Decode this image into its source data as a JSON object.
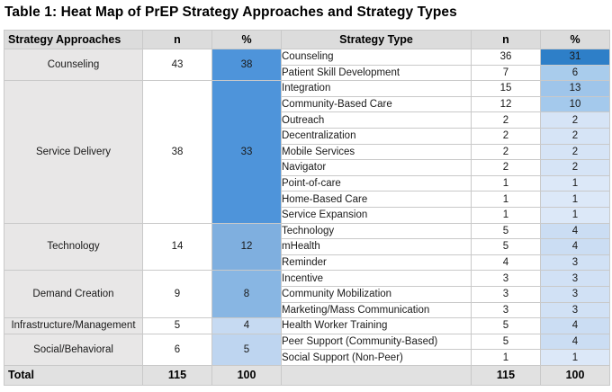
{
  "title": "Table 1: Heat Map of PrEP Strategy Approaches and Strategy Types",
  "chart_data": {
    "type": "heatmap",
    "subtype": "table",
    "columns": [
      "Strategy Approaches",
      "n",
      "%",
      "Strategy Type",
      "n",
      "%"
    ],
    "heat_scale_note": "blue intensity proportional to % value",
    "groups": [
      {
        "approach": "Counseling",
        "n": 43,
        "pct": 38,
        "pct_color": "#4e94da",
        "types": [
          {
            "label": "Counseling",
            "n": 36,
            "pct": 31,
            "pct_color": "#2e7fc8"
          },
          {
            "label": "Patient Skill Development",
            "n": 7,
            "pct": 6,
            "pct_color": "#a9ccec"
          }
        ]
      },
      {
        "approach": "Service Delivery",
        "n": 38,
        "pct": 33,
        "pct_color": "#4e94da",
        "types": [
          {
            "label": "Integration",
            "n": 15,
            "pct": 13,
            "pct_color": "#9fc5ea"
          },
          {
            "label": "Community-Based Care",
            "n": 12,
            "pct": 10,
            "pct_color": "#a4c9ec"
          },
          {
            "label": "Outreach",
            "n": 2,
            "pct": 2,
            "pct_color": "#d6e4f6"
          },
          {
            "label": "Decentralization",
            "n": 2,
            "pct": 2,
            "pct_color": "#d6e4f6"
          },
          {
            "label": "Mobile Services",
            "n": 2,
            "pct": 2,
            "pct_color": "#d6e4f6"
          },
          {
            "label": "Navigator",
            "n": 2,
            "pct": 2,
            "pct_color": "#d6e4f6"
          },
          {
            "label": "Point-of-care",
            "n": 1,
            "pct": 1,
            "pct_color": "#dce8f8"
          },
          {
            "label": "Home-Based Care",
            "n": 1,
            "pct": 1,
            "pct_color": "#dce8f8"
          },
          {
            "label": "Service Expansion",
            "n": 1,
            "pct": 1,
            "pct_color": "#dce8f8"
          }
        ]
      },
      {
        "approach": "Technology",
        "n": 14,
        "pct": 12,
        "pct_color": "#7fafdf",
        "types": [
          {
            "label": "Technology",
            "n": 5,
            "pct": 4,
            "pct_color": "#cbddf3"
          },
          {
            "label": "mHealth",
            "n": 5,
            "pct": 4,
            "pct_color": "#cbddf3"
          },
          {
            "label": "Reminder",
            "n": 4,
            "pct": 3,
            "pct_color": "#d1e1f5"
          }
        ]
      },
      {
        "approach": "Demand Creation",
        "n": 9,
        "pct": 8,
        "pct_color": "#88b6e3",
        "types": [
          {
            "label": "Incentive",
            "n": 3,
            "pct": 3,
            "pct_color": "#d1e1f5"
          },
          {
            "label": "Community Mobilization",
            "n": 3,
            "pct": 3,
            "pct_color": "#d1e1f5"
          },
          {
            "label": "Marketing/Mass Communication",
            "n": 3,
            "pct": 3,
            "pct_color": "#d1e1f5"
          }
        ]
      },
      {
        "approach": "Infrastructure/Management",
        "n": 5,
        "pct": 4,
        "pct_color": "#c6daf2",
        "types": [
          {
            "label": "Health Worker Training",
            "n": 5,
            "pct": 4,
            "pct_color": "#cbddf3"
          }
        ]
      },
      {
        "approach": "Social/Behavioral",
        "n": 6,
        "pct": 5,
        "pct_color": "#bed5f0",
        "types": [
          {
            "label": "Peer Support (Community-Based)",
            "n": 5,
            "pct": 4,
            "pct_color": "#cbddf3"
          },
          {
            "label": "Social Support (Non-Peer)",
            "n": 1,
            "pct": 1,
            "pct_color": "#dce8f8"
          }
        ]
      }
    ],
    "total": {
      "label": "Total",
      "approach_n": 115,
      "approach_pct": 100,
      "type_n": 115,
      "type_pct": 100
    }
  }
}
